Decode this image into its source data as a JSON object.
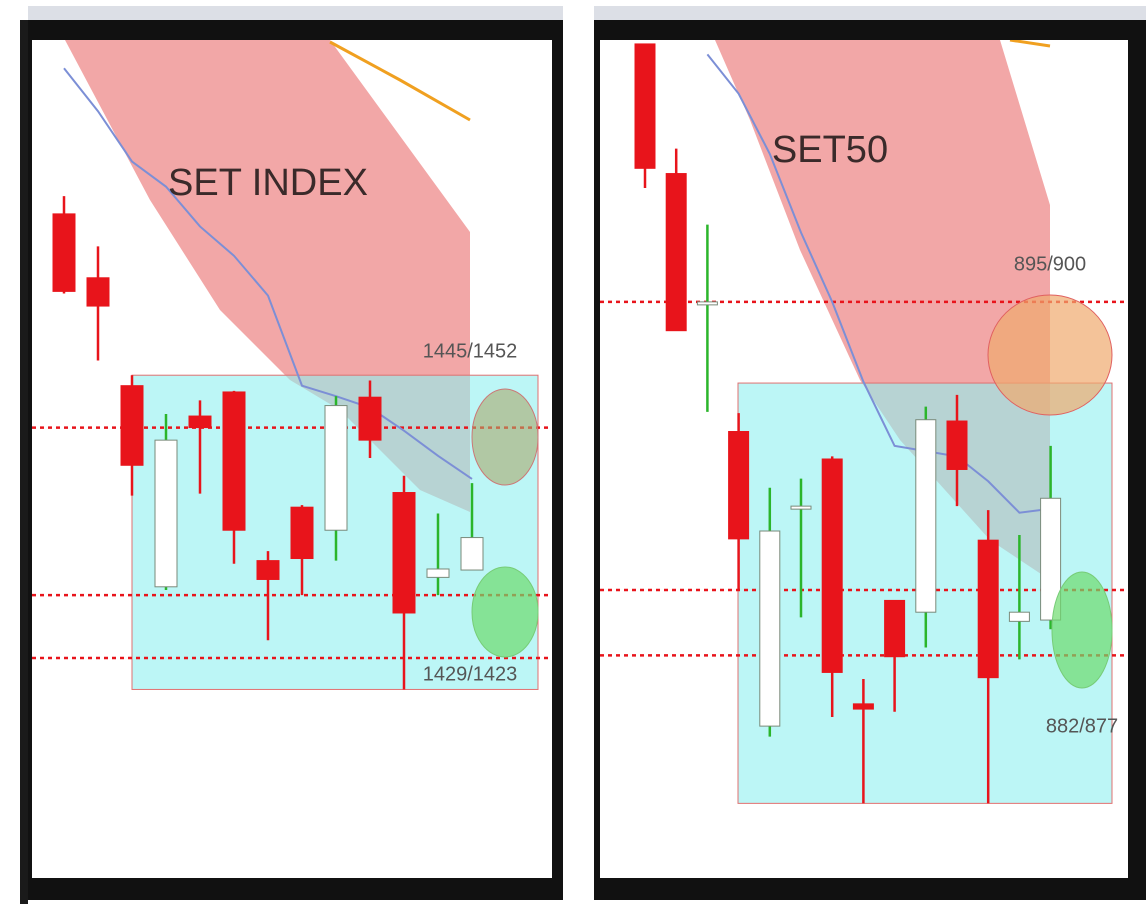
{
  "chart_data": [
    {
      "type": "candlestick",
      "title": "SET INDEX",
      "annotations": [
        "1445/1452",
        "1429/1423"
      ],
      "categories": [
        null,
        null,
        null,
        null,
        null,
        null,
        null,
        null,
        null,
        null,
        null,
        null,
        null
      ],
      "open": [
        1465.4,
        1459.3,
        1449.0,
        1429.8,
        1446.1,
        1448.4,
        1432.3,
        1437.4,
        1435.2,
        1447.9,
        1438.8,
        1430.7,
        1431.4
      ],
      "high": [
        1467.1,
        1462.3,
        1450.0,
        1446.3,
        1447.6,
        1448.5,
        1433.2,
        1437.6,
        1448.0,
        1449.5,
        1440.4,
        1436.8,
        1439.7
      ],
      "low": [
        1457.8,
        1451.4,
        1438.5,
        1429.5,
        1438.7,
        1432.0,
        1424.7,
        1429.0,
        1432.3,
        1442.1,
        1420.0,
        1429.0,
        1431.4
      ],
      "close": [
        1458.0,
        1456.6,
        1441.4,
        1443.8,
        1445.0,
        1435.2,
        1430.5,
        1432.5,
        1447.1,
        1443.8,
        1427.3,
        1431.5,
        1434.5
      ],
      "line": {
        "color": "#7c8fd6",
        "values": [
          1479.3,
          1475.2,
          1470.4,
          1468.0,
          1464.2,
          1461.4,
          1457.6,
          1449.0,
          1448.0,
          1446.9,
          1444.7,
          1442.3,
          1440.1
        ]
      },
      "hlines": {
        "color": "#e8141b",
        "values": [
          1445,
          1429,
          1423
        ]
      },
      "zone": {
        "color": "#8ff0f0",
        "values": [
          1420,
          1450
        ]
      },
      "up_color": "#ffffff",
      "down_color": "#e8141b",
      "up_wick_color": "#2bb52b",
      "ylim": [
        1402,
        1482
      ]
    },
    {
      "type": "candlestick",
      "title": "SET50",
      "annotations": [
        "895/900",
        "882/877"
      ],
      "categories": [
        null,
        null,
        null,
        null,
        null,
        null,
        null,
        null,
        null,
        null,
        null,
        null,
        null,
        null
      ],
      "open": [
        923.7,
        913.8,
        904.0,
        894.1,
        871.6,
        888.4,
        892.0,
        873.3,
        881.2,
        880.3,
        894.9,
        885.8,
        879.6,
        879.7
      ],
      "high": [
        923.7,
        915.7,
        909.9,
        895.5,
        889.8,
        890.5,
        892.2,
        875.2,
        881.2,
        896.0,
        896.9,
        888.1,
        886.2,
        893.0
      ],
      "low": [
        912.7,
        901.8,
        895.6,
        882.0,
        870.8,
        879.9,
        872.3,
        865.7,
        872.7,
        877.6,
        888.4,
        865.7,
        876.7,
        879.0
      ],
      "close": [
        914.2,
        901.8,
        904.0,
        885.9,
        886.5,
        888.4,
        875.7,
        872.9,
        876.9,
        895.0,
        891.2,
        875.3,
        880.3,
        889.0
      ],
      "line": {
        "color": "#7c8fd6",
        "values": [
          null,
          null,
          922.9,
          919.9,
          915.3,
          909.3,
          904.0,
          897.9,
          893.0,
          892.6,
          892.2,
          890.3,
          887.9,
          888.2
        ]
      },
      "hlines": {
        "color": "#e8141b",
        "values": [
          904,
          882,
          877
        ]
      },
      "zone": {
        "color": "#8ff0f0",
        "values": [
          865.7,
          897.8
        ]
      },
      "up_color": "#ffffff",
      "down_color": "#e8141b",
      "up_wick_color": "#2bb52b",
      "ylim": [
        860,
        924
      ]
    }
  ]
}
